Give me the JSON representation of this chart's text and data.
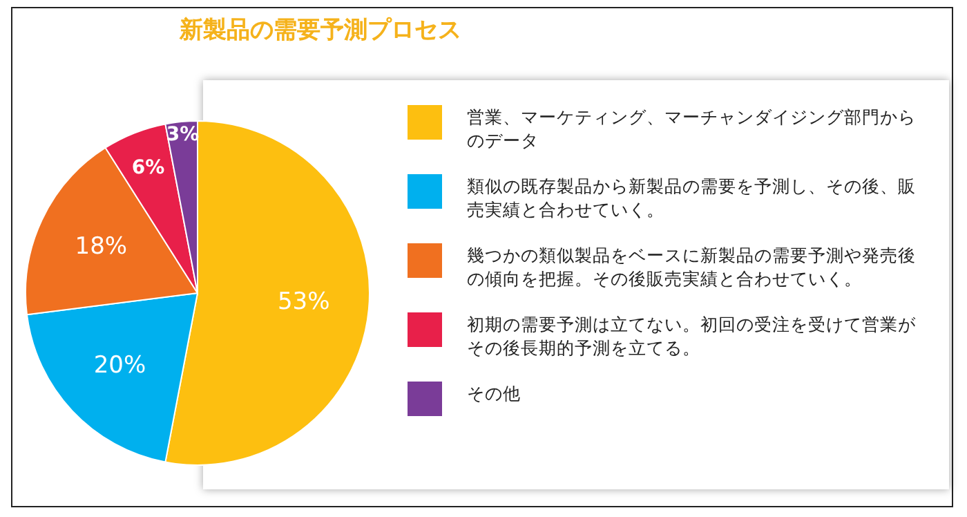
{
  "chart_data": {
    "type": "pie",
    "title": "新製品の需要予測プロセス",
    "categories": [
      "営業、マーケティング、マーチャンダイジング部門からのデータ",
      "類似の既存製品から新製品の需要を予測し、その後、販売実績と合わせていく。",
      "幾つかの類似製品をベースに新製品の需要予測や発売後の傾向を把握。その後販売実績と合わせていく。",
      "初期の需要予測は立てない。初回の受注を受けて営業がその後長期的予測を立てる。",
      "その他"
    ],
    "values": [
      53,
      20,
      18,
      6,
      3
    ],
    "colors": [
      "#fdbf10",
      "#00b0ee",
      "#f07020",
      "#e8204a",
      "#7a3c98"
    ],
    "value_labels": [
      "53%",
      "20%",
      "18%",
      "6%",
      "3%"
    ],
    "legend": "right"
  }
}
